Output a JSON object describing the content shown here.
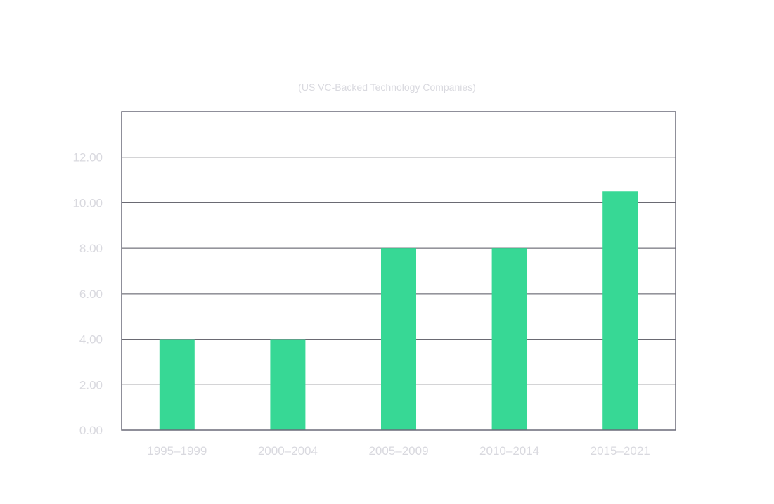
{
  "chart_data": {
    "type": "bar",
    "subtitle": "(US VC-Backed Technology Companies)",
    "categories": [
      "1995–1999",
      "2000–2004",
      "2005–2009",
      "2010–2014",
      "2015–2021"
    ],
    "values": [
      4.0,
      4.0,
      8.0,
      8.0,
      10.5
    ],
    "ylim": [
      0,
      14
    ],
    "yticks": [
      "0.00",
      "2.00",
      "4.00",
      "6.00",
      "8.00",
      "10.00",
      "12.00"
    ],
    "grid": true,
    "xlabel": "",
    "ylabel": "",
    "colors": {
      "bar": "#37d895",
      "grid": "#55555f",
      "frame": "#6a6a78",
      "label": "#d9d9df"
    }
  }
}
